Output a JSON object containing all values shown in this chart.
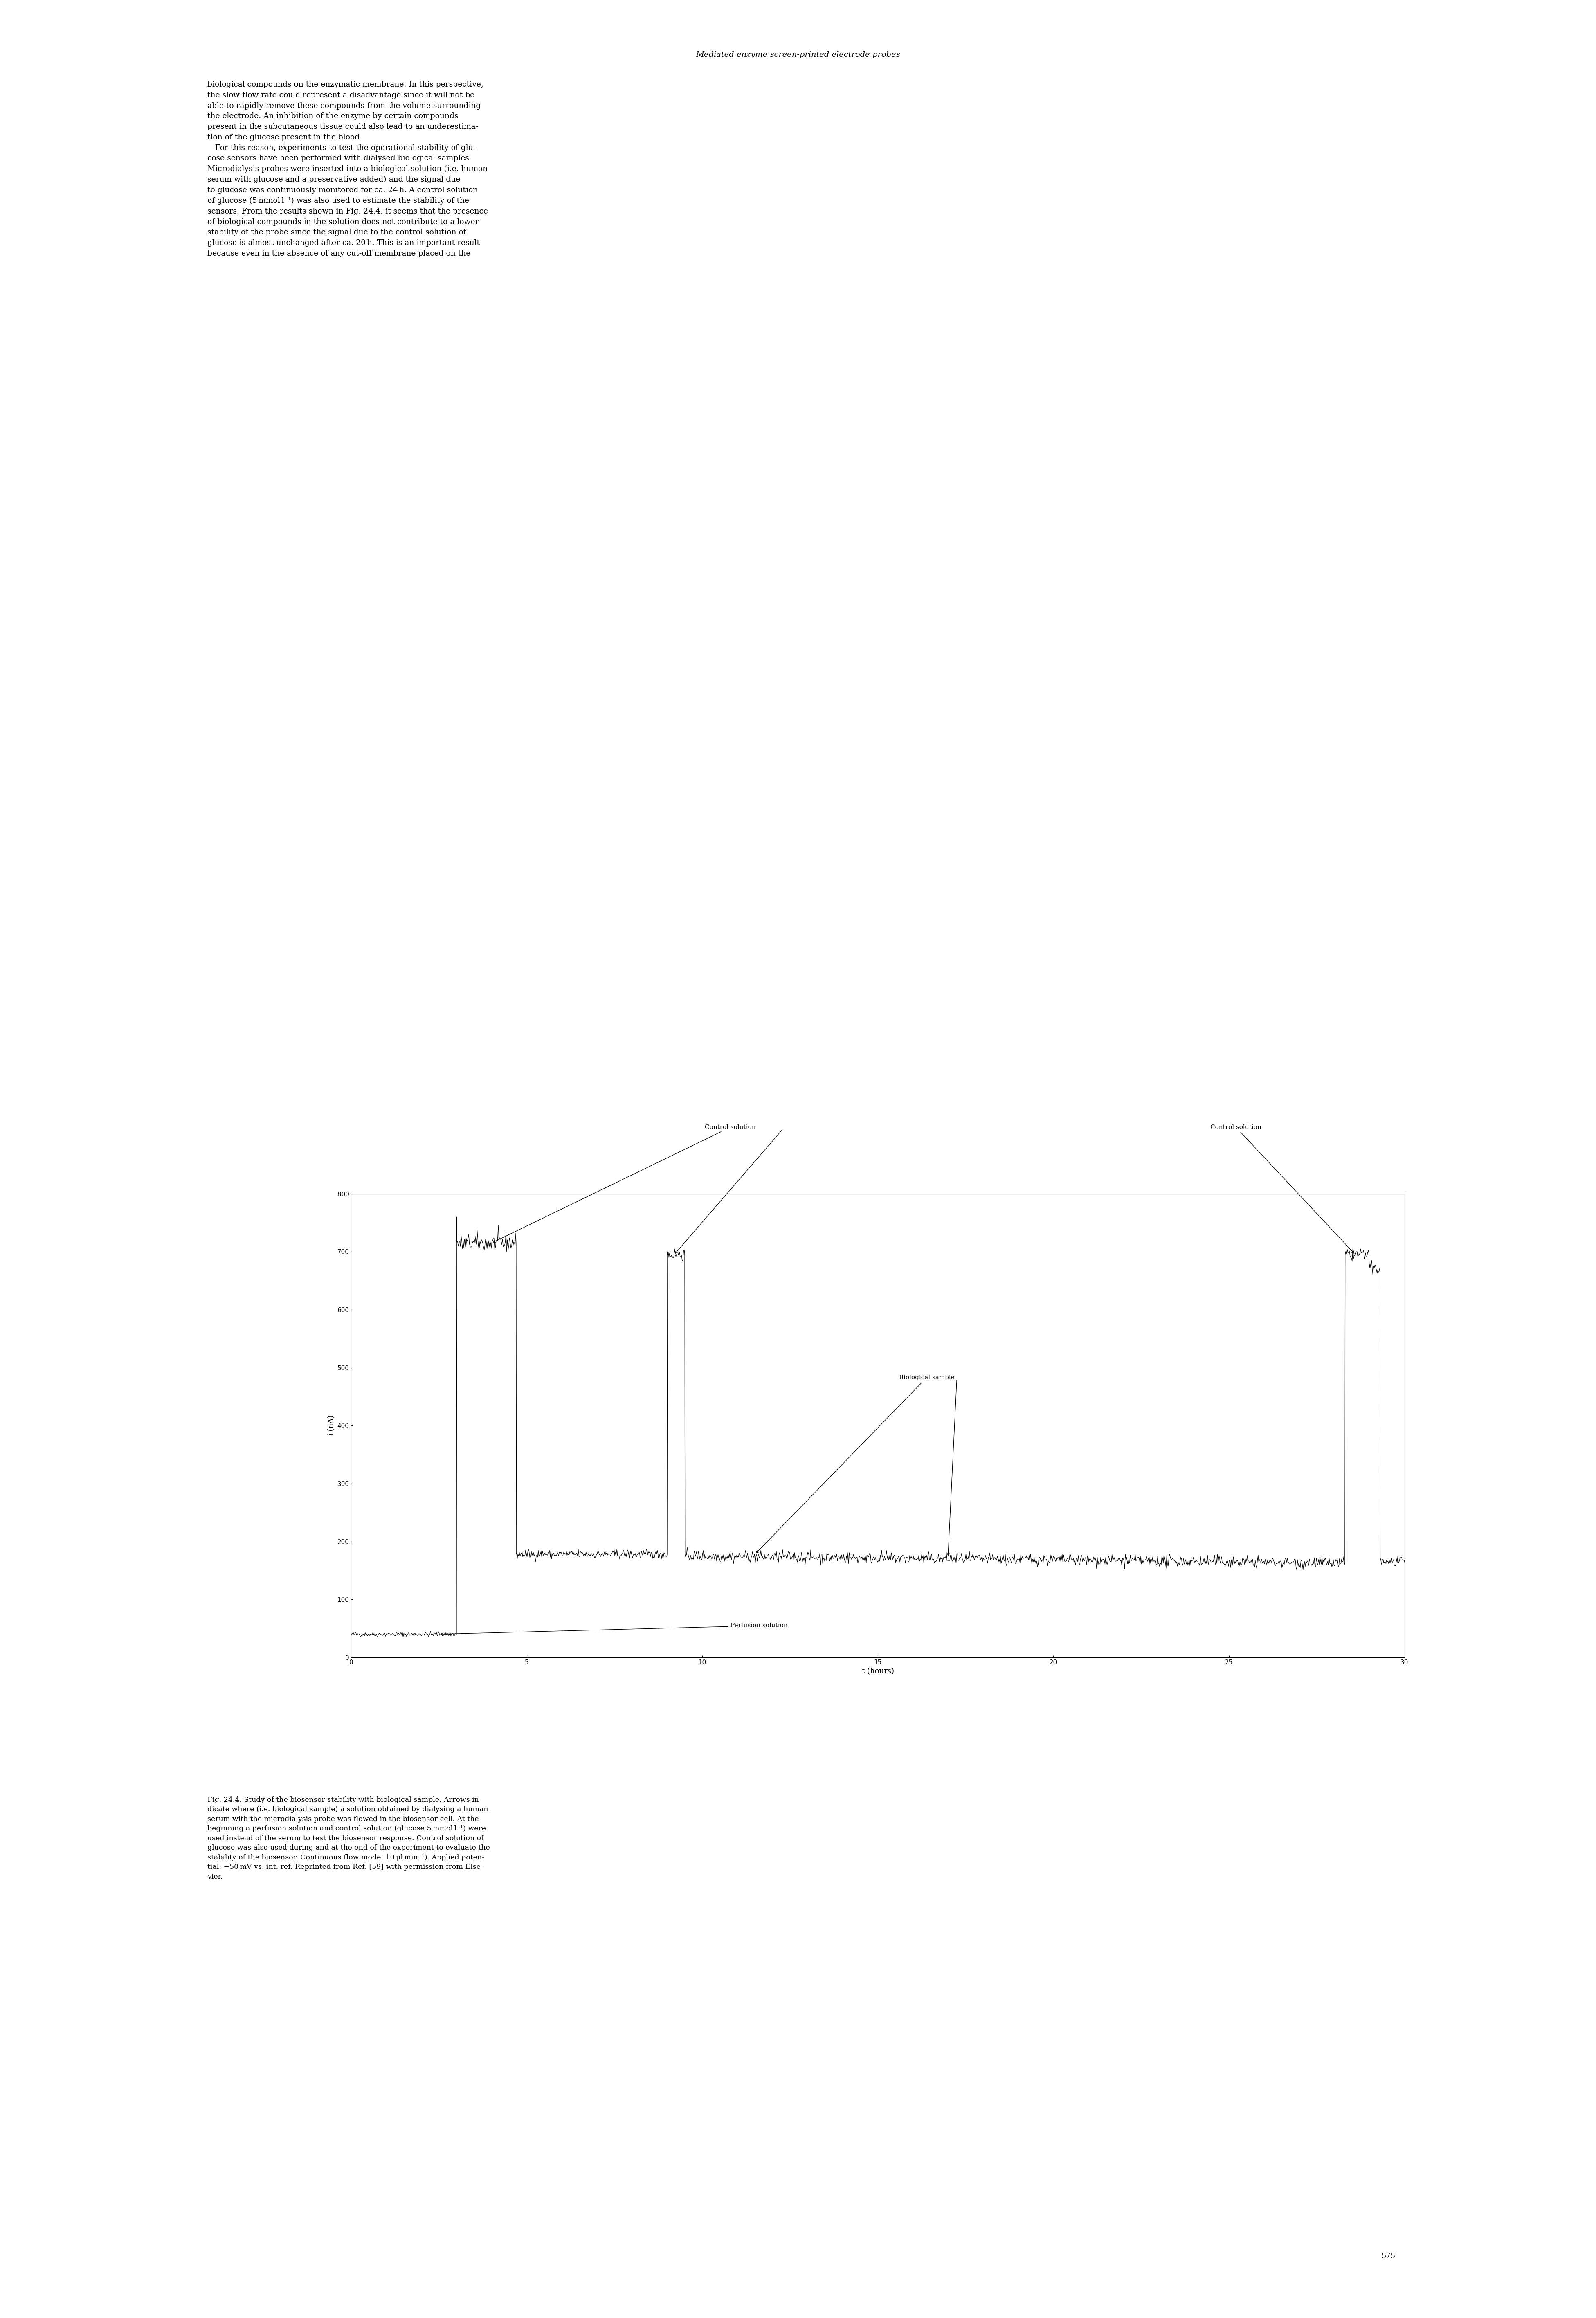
{
  "title_header": "Mediated enzyme screen-printed electrode probes",
  "ylabel": "i (nA)",
  "xlabel": "t (hours)",
  "xlim": [
    0,
    30
  ],
  "ylim": [
    0,
    800
  ],
  "xticks": [
    0,
    5,
    10,
    15,
    20,
    25,
    30
  ],
  "yticks": [
    0,
    100,
    200,
    300,
    400,
    500,
    600,
    700,
    800
  ],
  "annotation_control1": "Control solution",
  "annotation_control2": "Control solution",
  "annotation_bio": "Biological sample",
  "annotation_perf": "Perfusion solution",
  "page_number": "575",
  "background_color": "#ffffff",
  "line_color": "#000000",
  "text_color": "#000000"
}
